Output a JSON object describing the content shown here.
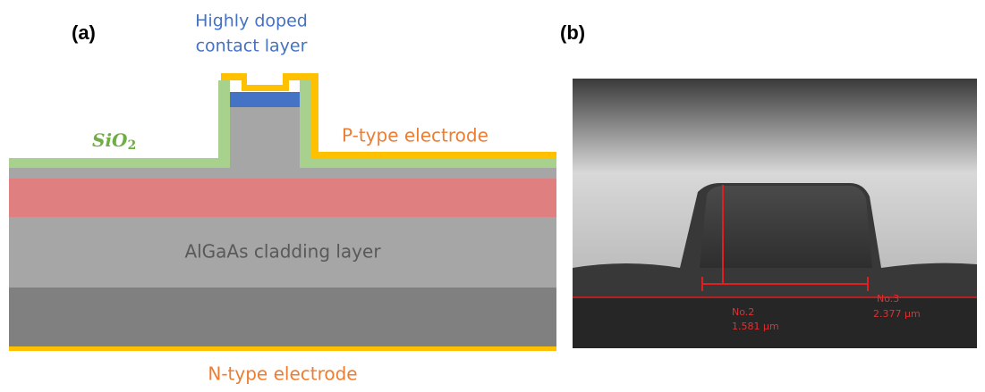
{
  "panel_a": {
    "label": "(a)",
    "contact_layer": [
      "Highly doped",
      "contact layer"
    ],
    "oxide": {
      "base": "SiO",
      "subscript": "2"
    },
    "p_electrode": "P-type electrode",
    "cladding": "AlGaAs cladding layer",
    "n_electrode": "N-type electrode"
  },
  "panel_b": {
    "label": "(b)",
    "measurements": [
      {
        "name": "No.2",
        "value": "1.581 µm"
      },
      {
        "name": "No.3",
        "value": "2.377 µm"
      }
    ]
  }
}
